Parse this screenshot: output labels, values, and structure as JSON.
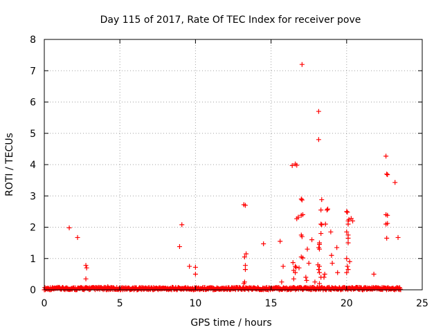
{
  "chart_data": {
    "type": "scatter",
    "title": "Day 115 of 2017, Rate Of TEC Index for receiver pove",
    "xlabel": "GPS time / hours",
    "ylabel": "ROTI / TECUs",
    "xlim": [
      0,
      25
    ],
    "ylim": [
      0,
      8
    ],
    "x_ticks": [
      0,
      5,
      10,
      15,
      20,
      25
    ],
    "y_ticks": [
      0,
      1,
      2,
      3,
      4,
      5,
      6,
      7,
      8
    ],
    "grid": true,
    "marker": "+",
    "color": "#ff0000",
    "series": [
      {
        "name": "ROTI",
        "baseline": {
          "x_start": 0.0,
          "x_end": 23.6,
          "step": 0.0333,
          "y_min": 0.0,
          "y_max": 0.08
        },
        "points": [
          [
            1.65,
            1.98
          ],
          [
            2.2,
            1.67
          ],
          [
            2.75,
            0.78
          ],
          [
            2.8,
            0.7
          ],
          [
            2.75,
            0.35
          ],
          [
            3.6,
            0.08
          ],
          [
            4.2,
            0.1
          ],
          [
            4.4,
            0.07
          ],
          [
            8.95,
            1.38
          ],
          [
            9.1,
            2.08
          ],
          [
            9.6,
            0.75
          ],
          [
            10.0,
            0.72
          ],
          [
            10.0,
            0.5
          ],
          [
            13.2,
            2.72
          ],
          [
            13.3,
            2.7
          ],
          [
            13.25,
            1.05
          ],
          [
            13.35,
            1.15
          ],
          [
            13.3,
            0.78
          ],
          [
            13.3,
            0.65
          ],
          [
            13.25,
            0.25
          ],
          [
            13.2,
            0.2
          ],
          [
            14.5,
            1.47
          ],
          [
            15.6,
            1.55
          ],
          [
            15.8,
            0.75
          ],
          [
            15.7,
            0.25
          ],
          [
            16.4,
            3.97
          ],
          [
            16.6,
            4.02
          ],
          [
            16.7,
            3.98
          ],
          [
            16.45,
            0.87
          ],
          [
            16.5,
            0.62
          ],
          [
            16.6,
            0.75
          ],
          [
            16.6,
            0.55
          ],
          [
            16.65,
            0.72
          ],
          [
            16.7,
            2.27
          ],
          [
            16.8,
            2.32
          ],
          [
            16.85,
            0.7
          ],
          [
            16.5,
            0.35
          ],
          [
            17.05,
            7.2
          ],
          [
            17.0,
            2.9
          ],
          [
            17.05,
            2.87
          ],
          [
            17.0,
            2.38
          ],
          [
            17.1,
            2.4
          ],
          [
            17.0,
            1.75
          ],
          [
            17.05,
            1.7
          ],
          [
            17.0,
            1.05
          ],
          [
            17.1,
            1.02
          ],
          [
            17.3,
            0.4
          ],
          [
            17.35,
            0.3
          ],
          [
            17.4,
            1.3
          ],
          [
            17.5,
            0.85
          ],
          [
            17.7,
            1.6
          ],
          [
            17.9,
            0.25
          ],
          [
            18.15,
            5.7
          ],
          [
            18.15,
            4.8
          ],
          [
            18.35,
            2.88
          ],
          [
            18.3,
            2.55
          ],
          [
            18.3,
            2.1
          ],
          [
            18.35,
            2.08
          ],
          [
            18.3,
            1.8
          ],
          [
            18.2,
            1.5
          ],
          [
            18.2,
            1.45
          ],
          [
            18.15,
            1.35
          ],
          [
            18.2,
            1.3
          ],
          [
            18.1,
            0.8
          ],
          [
            18.2,
            0.75
          ],
          [
            18.15,
            0.65
          ],
          [
            18.2,
            0.55
          ],
          [
            18.3,
            0.4
          ],
          [
            18.2,
            0.2
          ],
          [
            18.5,
            0.4
          ],
          [
            18.55,
            0.5
          ],
          [
            18.6,
            2.1
          ],
          [
            18.7,
            2.55
          ],
          [
            18.75,
            2.58
          ],
          [
            18.95,
            1.85
          ],
          [
            19.0,
            1.1
          ],
          [
            19.05,
            0.85
          ],
          [
            19.35,
            1.35
          ],
          [
            19.4,
            0.55
          ],
          [
            20.0,
            2.5
          ],
          [
            20.05,
            2.48
          ],
          [
            20.1,
            2.2
          ],
          [
            20.15,
            2.25
          ],
          [
            20.1,
            2.1
          ],
          [
            20.0,
            1.85
          ],
          [
            20.1,
            1.75
          ],
          [
            20.1,
            1.65
          ],
          [
            20.1,
            1.5
          ],
          [
            20.0,
            1.0
          ],
          [
            20.05,
            0.75
          ],
          [
            20.1,
            0.65
          ],
          [
            20.0,
            0.55
          ],
          [
            20.2,
            0.9
          ],
          [
            20.3,
            2.28
          ],
          [
            20.4,
            2.2
          ],
          [
            21.8,
            0.5
          ],
          [
            22.6,
            4.27
          ],
          [
            22.65,
            3.7
          ],
          [
            22.7,
            3.68
          ],
          [
            22.6,
            2.4
          ],
          [
            22.7,
            2.38
          ],
          [
            22.6,
            2.1
          ],
          [
            22.7,
            2.12
          ],
          [
            22.65,
            1.65
          ],
          [
            23.2,
            3.43
          ],
          [
            23.4,
            1.67
          ]
        ]
      }
    ]
  }
}
